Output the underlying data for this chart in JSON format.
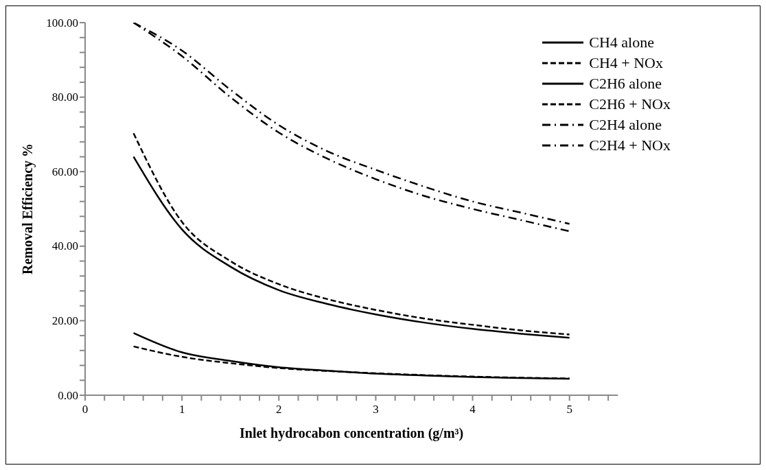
{
  "chart_data": {
    "type": "line",
    "xlabel": "Inlet hydrocabon concentration (g/m³)",
    "ylabel": "Removal Efficiency %",
    "x": [
      0.5,
      1,
      1.5,
      2,
      2.5,
      3,
      3.5,
      4,
      4.5,
      5
    ],
    "series": [
      {
        "name": "CH4 alone",
        "color": "#000000",
        "line_style": "solid",
        "values": [
          16.7,
          11.5,
          9.2,
          7.5,
          6.6,
          5.8,
          5.3,
          4.9,
          4.6,
          4.4
        ]
      },
      {
        "name": "CH4 + NOx",
        "color": "#000000",
        "line_style": "dashed",
        "values": [
          13.1,
          10.3,
          8.6,
          7.3,
          6.5,
          5.9,
          5.4,
          5.0,
          4.7,
          4.5
        ]
      },
      {
        "name": "C2H6 alone",
        "color": "#000000",
        "line_style": "solid",
        "values": [
          64,
          44.5,
          34.5,
          28.2,
          24.5,
          21.7,
          19.5,
          17.8,
          16.5,
          15.4
        ]
      },
      {
        "name": "C2H6 + NOx",
        "color": "#000000",
        "line_style": "dashed",
        "values": [
          70.3,
          46.5,
          36,
          29.8,
          25.8,
          22.9,
          20.6,
          18.9,
          17.4,
          16.3
        ]
      },
      {
        "name": "C2H4 alone",
        "color": "#000000",
        "line_style": "dashdot",
        "values": [
          100,
          91,
          80,
          70.5,
          63.5,
          58,
          53.5,
          50,
          47,
          44
        ]
      },
      {
        "name": "C2H4 + NOx",
        "color": "#000000",
        "line_style": "dashdot",
        "values": [
          100,
          92.5,
          82,
          72.5,
          65.5,
          60.5,
          56,
          52,
          49,
          46
        ]
      }
    ],
    "xlim": [
      0,
      5.5
    ],
    "xticks": [
      0,
      {
        "value": 0.2,
        "label": null
      },
      {
        "value": 0.4,
        "label": null
      },
      {
        "value": 0.6,
        "label": null
      },
      {
        "value": 0.8,
        "label": null
      },
      1,
      {
        "value": 1.2,
        "label": null
      },
      {
        "value": 1.4,
        "label": null
      },
      {
        "value": 1.6,
        "label": null
      },
      {
        "value": 1.8,
        "label": null
      },
      2,
      {
        "value": 2.2,
        "label": null
      },
      {
        "value": 2.4,
        "label": null
      },
      {
        "value": 2.6,
        "label": null
      },
      {
        "value": 2.8,
        "label": null
      },
      3,
      {
        "value": 3.2,
        "label": null
      },
      {
        "value": 3.4,
        "label": null
      },
      {
        "value": 3.6,
        "label": null
      },
      {
        "value": 3.8,
        "label": null
      },
      4,
      {
        "value": 4.2,
        "label": null
      },
      {
        "value": 4.4,
        "label": null
      },
      {
        "value": 4.6,
        "label": null
      },
      {
        "value": 4.8,
        "label": null
      },
      5,
      {
        "value": 5.2,
        "label": null
      },
      {
        "value": 5.4,
        "label": null
      }
    ],
    "ylim": [
      0,
      100
    ],
    "yticks": [
      {
        "value": 0,
        "label": "0.00"
      },
      {
        "value": 4,
        "label": null
      },
      {
        "value": 8,
        "label": null
      },
      {
        "value": 12,
        "label": null
      },
      {
        "value": 16,
        "label": null
      },
      {
        "value": 20,
        "label": "20.00"
      },
      {
        "value": 24,
        "label": null
      },
      {
        "value": 28,
        "label": null
      },
      {
        "value": 32,
        "label": null
      },
      {
        "value": 36,
        "label": null
      },
      {
        "value": 40,
        "label": "40.00"
      },
      {
        "value": 44,
        "label": null
      },
      {
        "value": 48,
        "label": null
      },
      {
        "value": 52,
        "label": null
      },
      {
        "value": 56,
        "label": null
      },
      {
        "value": 60,
        "label": "60.00"
      },
      {
        "value": 64,
        "label": null
      },
      {
        "value": 68,
        "label": null
      },
      {
        "value": 72,
        "label": null
      },
      {
        "value": 76,
        "label": null
      },
      {
        "value": 80,
        "label": "80.00"
      },
      {
        "value": 84,
        "label": null
      },
      {
        "value": 88,
        "label": null
      },
      {
        "value": 92,
        "label": null
      },
      {
        "value": 96,
        "label": null
      },
      {
        "value": 100,
        "label": "100.00"
      }
    ],
    "grid": false,
    "legend": "top right",
    "marker": "none"
  }
}
